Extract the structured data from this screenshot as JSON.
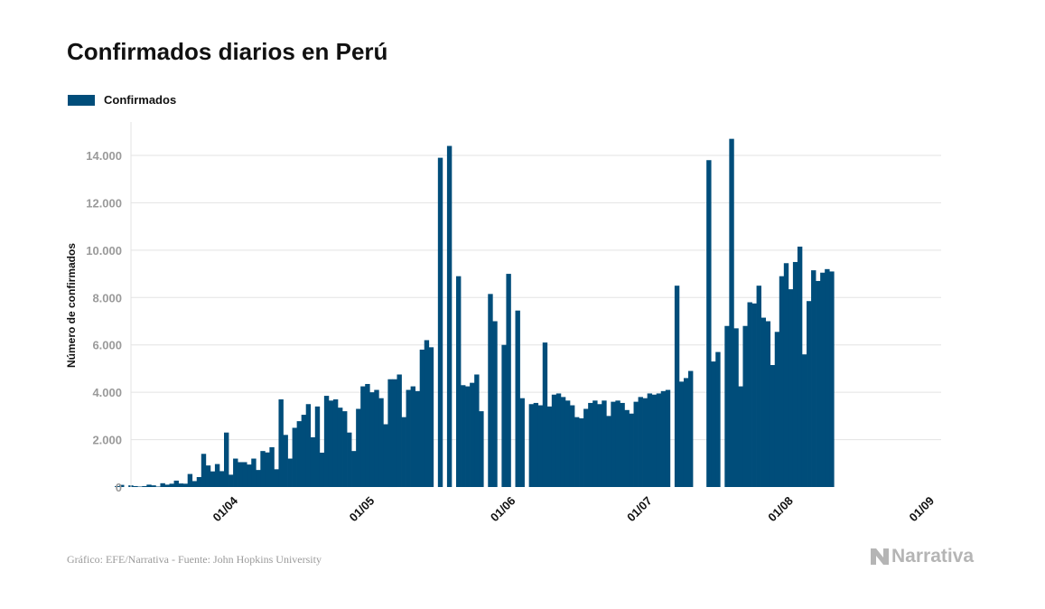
{
  "chart_data": {
    "type": "bar",
    "title": "Confirmados diarios en Perú",
    "ylabel": "Número de confirmados",
    "xlabel": "",
    "ylim": [
      0,
      15000
    ],
    "y_ticks": [
      0,
      2000,
      4000,
      6000,
      8000,
      10000,
      12000,
      14000
    ],
    "y_tick_labels": [
      "0",
      "2.000",
      "4.000",
      "6.000",
      "8.000",
      "10.000",
      "12.000",
      "14.000"
    ],
    "x_tick_labels": [
      "01/04",
      "01/05",
      "01/06",
      "01/07",
      "01/08",
      "01/09"
    ],
    "x_tick_dates": [
      "2020-04-01",
      "2020-05-01",
      "2020-06-01",
      "2020-07-01",
      "2020-08-01",
      "2020-09-01"
    ],
    "grid": "horizontal",
    "legend_position": "top-left",
    "series": [
      {
        "name": "Confirmados",
        "color": "#004d7a",
        "start_date": "2020-03-08",
        "values": [
          40,
          90,
          0,
          70,
          40,
          20,
          40,
          100,
          70,
          20,
          160,
          100,
          140,
          270,
          150,
          140,
          550,
          250,
          420,
          1400,
          910,
          660,
          970,
          670,
          2300,
          520,
          1200,
          1050,
          1050,
          950,
          1200,
          720,
          1520,
          1460,
          1680,
          750,
          3700,
          2200,
          1200,
          2500,
          2780,
          3050,
          3500,
          2100,
          3400,
          1450,
          3850,
          3650,
          3700,
          3350,
          3200,
          2300,
          1520,
          3300,
          4250,
          4350,
          4000,
          4100,
          3750,
          2650,
          4550,
          4550,
          4750,
          2950,
          4100,
          4250,
          4050,
          5800,
          6200,
          5900,
          0,
          13900,
          0,
          14400,
          0,
          8900,
          4300,
          4250,
          4400,
          4750,
          3200,
          0,
          8150,
          7000,
          0,
          6000,
          9000,
          0,
          7450,
          3750,
          0,
          3500,
          3550,
          3450,
          6100,
          3400,
          3900,
          3950,
          3800,
          3650,
          3450,
          2950,
          2900,
          3300,
          3550,
          3650,
          3500,
          3650,
          3000,
          3600,
          3650,
          3550,
          3250,
          3100,
          3600,
          3800,
          3750,
          3950,
          3900,
          3950,
          4050,
          4100,
          0,
          8500,
          4450,
          4600,
          4900,
          0,
          0,
          0,
          13800,
          5300,
          5700,
          0,
          6800,
          14700,
          6700,
          4250,
          6800,
          7800,
          7750,
          8500,
          7150,
          7000,
          5150,
          6550,
          8900,
          9450,
          8350,
          9500,
          10150,
          5600,
          7850,
          9150,
          8700,
          9050,
          9200,
          9100
        ]
      }
    ]
  },
  "footer": {
    "source": "Gráfico: EFE/Narrativa - Fuente: John Hopkins University",
    "brand": "Narrativa"
  },
  "colors": {
    "bar": "#004d7a",
    "grid": "#e3e3e3",
    "axis_text": "#9a9a9a",
    "brand": "#b5b5b5"
  }
}
